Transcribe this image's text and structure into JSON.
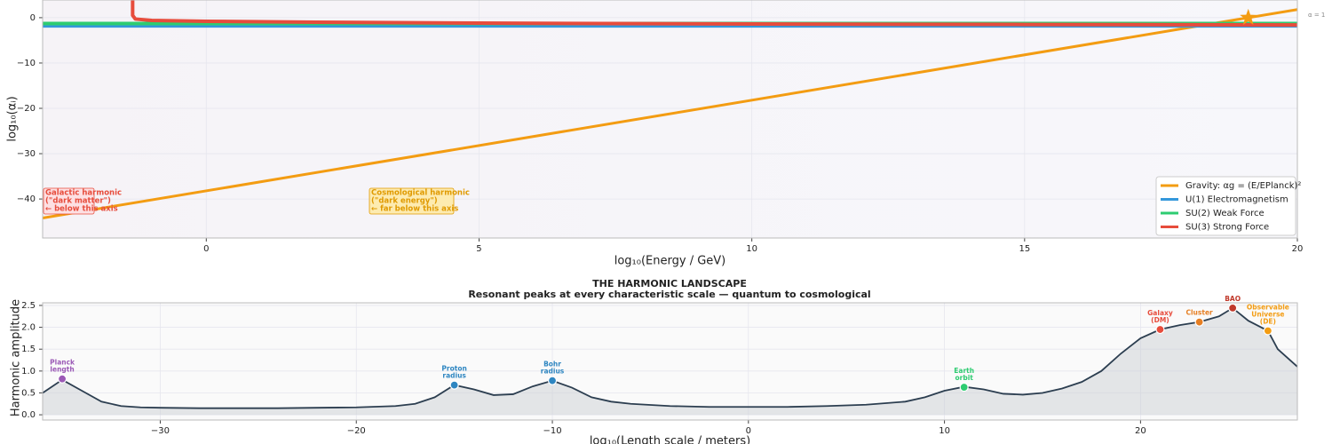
{
  "chart_data": [
    {
      "type": "line",
      "xlabel": "log₁₀(Energy / GeV)",
      "ylabel": "log₁₀(αᵢ)",
      "xlim": [
        -3,
        20
      ],
      "ylim": [
        -48.6,
        3.9
      ],
      "xticks": [
        0,
        5,
        10,
        15,
        20
      ],
      "yticks": [
        0,
        {
          "value": -10,
          "label": "−10"
        },
        {
          "value": -20,
          "label": "−20"
        },
        {
          "value": -30,
          "label": "−30"
        },
        {
          "value": -40,
          "label": "−40"
        }
      ],
      "grid": true,
      "legend": "lower right",
      "series": [
        {
          "name": "Gravity: αg = (E/EPlanck)²",
          "color": "#f39c12",
          "x": [
            -3,
            20
          ],
          "values": [
            -44.2,
            1.8
          ]
        },
        {
          "name": "U(1) Electromagnetism",
          "color": "#3498db",
          "x": [
            -3,
            20
          ],
          "values": [
            -1.8,
            -1.8
          ]
        },
        {
          "name": "SU(2) Weak Force",
          "color": "#2ecc71",
          "x": [
            -3,
            20
          ],
          "values": [
            -1.3,
            -1.3
          ]
        },
        {
          "name": "SU(3) Strong Force",
          "color": "#e74c3c",
          "x": [
            -1.35,
            -1.35,
            -1.3,
            -1,
            0,
            2,
            5,
            10,
            15,
            20
          ],
          "values": [
            3.9,
            0.5,
            -0.3,
            -0.6,
            -0.8,
            -1.0,
            -1.2,
            -1.4,
            -1.5,
            -1.6
          ]
        }
      ],
      "star": {
        "x": 19.1,
        "y": 0,
        "color": "#f39c12"
      },
      "reference_label": "α = 1",
      "annotations": [
        {
          "lines": [
            "Galactic harmonic",
            "(\"dark matter\")",
            "← below this axis"
          ],
          "color": "#e74c3c"
        },
        {
          "lines": [
            "Cosmological harmonic",
            "(\"dark energy\")",
            "← far below this axis"
          ],
          "color": "#e09a00"
        }
      ]
    },
    {
      "type": "area",
      "title": "THE HARMONIC LANDSCAPE",
      "subtitle": "Resonant peaks at every characteristic scale — quantum to cosmological",
      "xlabel": "log₁₀(Length scale / meters)",
      "ylabel": "Harmonic amplitude",
      "xlim": [
        -36,
        28
      ],
      "ylim": [
        -0.12,
        2.56
      ],
      "xticks": [
        {
          "value": -30,
          "label": "−30"
        },
        {
          "value": -20,
          "label": "−20"
        },
        {
          "value": -10,
          "label": "−10"
        },
        0,
        10,
        20
      ],
      "yticks": [
        {
          "value": 0,
          "label": "0.0"
        },
        0.5,
        {
          "value": 1,
          "label": "1.0"
        },
        1.5,
        {
          "value": 2,
          "label": "2.0"
        },
        2.5
      ],
      "grid": true,
      "color": "#2c3e50",
      "x": [
        -36,
        -35,
        -34,
        -33,
        -32,
        -31,
        -30,
        -28,
        -26,
        -24,
        -22,
        -20,
        -18,
        -17,
        -16,
        -15,
        -14,
        -13,
        -12,
        -11,
        -10,
        -9,
        -8,
        -7,
        -6,
        -4,
        -2,
        0,
        2,
        4,
        6,
        8,
        9,
        10,
        11,
        12,
        13,
        14,
        15,
        16,
        17,
        18,
        19,
        20,
        21,
        22,
        23,
        24,
        24.7,
        25.5,
        26.5,
        27,
        28
      ],
      "values": [
        0.5,
        0.8,
        0.55,
        0.3,
        0.2,
        0.17,
        0.16,
        0.15,
        0.15,
        0.15,
        0.16,
        0.17,
        0.2,
        0.25,
        0.4,
        0.68,
        0.58,
        0.45,
        0.47,
        0.65,
        0.78,
        0.62,
        0.4,
        0.3,
        0.25,
        0.2,
        0.18,
        0.18,
        0.18,
        0.2,
        0.23,
        0.3,
        0.4,
        0.55,
        0.64,
        0.58,
        0.48,
        0.46,
        0.5,
        0.6,
        0.75,
        1.0,
        1.4,
        1.75,
        1.95,
        2.05,
        2.12,
        2.25,
        2.44,
        2.15,
        1.92,
        1.5,
        1.1
      ],
      "points": [
        {
          "x": -35,
          "y": 0.82,
          "color": "#9b59b6",
          "label": [
            "Planck",
            "length"
          ]
        },
        {
          "x": -15,
          "y": 0.68,
          "color": "#2e86c1",
          "label": [
            "Proton",
            "radius"
          ]
        },
        {
          "x": -10,
          "y": 0.78,
          "color": "#2e86c1",
          "label": [
            "Bohr",
            "radius"
          ]
        },
        {
          "x": 11,
          "y": 0.63,
          "color": "#2ecc71",
          "label": [
            "Earth",
            "orbit"
          ]
        },
        {
          "x": 21,
          "y": 1.95,
          "color": "#e74c3c",
          "label": [
            "Galaxy",
            "(DM)"
          ]
        },
        {
          "x": 23,
          "y": 2.12,
          "color": "#e67e22",
          "label": [
            "Cluster"
          ]
        },
        {
          "x": 24.7,
          "y": 2.44,
          "color": "#c0392b",
          "label": [
            "BAO"
          ]
        },
        {
          "x": 26.5,
          "y": 1.92,
          "color": "#f39c12",
          "label": [
            "Observable",
            "Universe",
            "(DE)"
          ]
        }
      ]
    }
  ]
}
